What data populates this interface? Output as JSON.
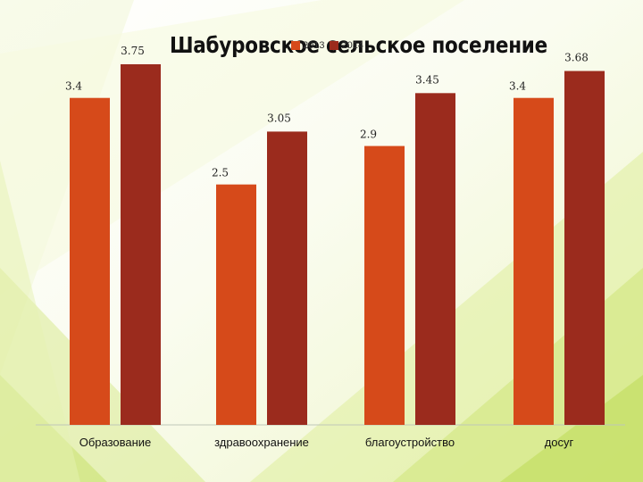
{
  "chart_data": {
    "type": "bar",
    "title": "Шабуровское сельское поселение",
    "categories": [
      "Образование",
      "здравоохранение",
      "благоустройство",
      "досуг"
    ],
    "series": [
      {
        "name": "2013",
        "values": [
          3.4,
          2.5,
          2.9,
          3.4
        ],
        "labels": [
          "3.4",
          "2.5",
          "2.9",
          "3.4"
        ]
      },
      {
        "name": "2014",
        "values": [
          3.75,
          3.05,
          3.45,
          3.68
        ],
        "labels": [
          "3.75",
          "3.05",
          "3.45",
          "3.68"
        ]
      }
    ],
    "ylim": [
      0,
      3.75
    ],
    "grid": false,
    "legend": "top",
    "colors": {
      "series_0": "#d64a1a",
      "series_1": "#9b2b1d",
      "baseline": "#bfc7b8"
    }
  }
}
